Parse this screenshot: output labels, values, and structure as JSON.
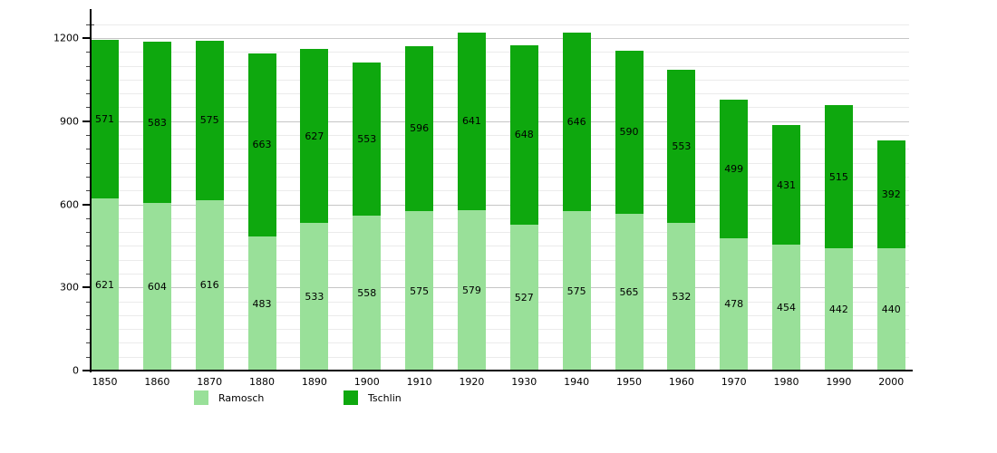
{
  "chart_data": {
    "type": "bar",
    "stacked": true,
    "categories": [
      "1850",
      "1860",
      "1870",
      "1880",
      "1890",
      "1900",
      "1910",
      "1920",
      "1930",
      "1940",
      "1950",
      "1960",
      "1970",
      "1980",
      "1990",
      "2000"
    ],
    "series": [
      {
        "name": "Ramosch",
        "color": "#99E099",
        "values": [
          621,
          604,
          616,
          483,
          533,
          558,
          575,
          579,
          527,
          575,
          565,
          532,
          478,
          454,
          442,
          440
        ]
      },
      {
        "name": "Tschlin",
        "color": "#0EA80E",
        "values": [
          571,
          583,
          575,
          663,
          627,
          553,
          596,
          641,
          648,
          646,
          590,
          553,
          499,
          431,
          515,
          392
        ]
      }
    ],
    "xlabel": "",
    "ylabel": "",
    "title": "",
    "ylim": [
      0,
      1200
    ],
    "y_tick_labels": [
      "0",
      "300",
      "600",
      "900",
      "1200"
    ],
    "y_minor_interval": 50,
    "y_major_interval": 300,
    "grid": "horizontal",
    "legend_position": "bottom",
    "bar_value_labels": true,
    "colors": {
      "axis": "#000000",
      "grid_major": "#c6c6c6",
      "grid_minor": "#ebebeb",
      "background": "#ffffff",
      "value_label": "#000000"
    }
  }
}
